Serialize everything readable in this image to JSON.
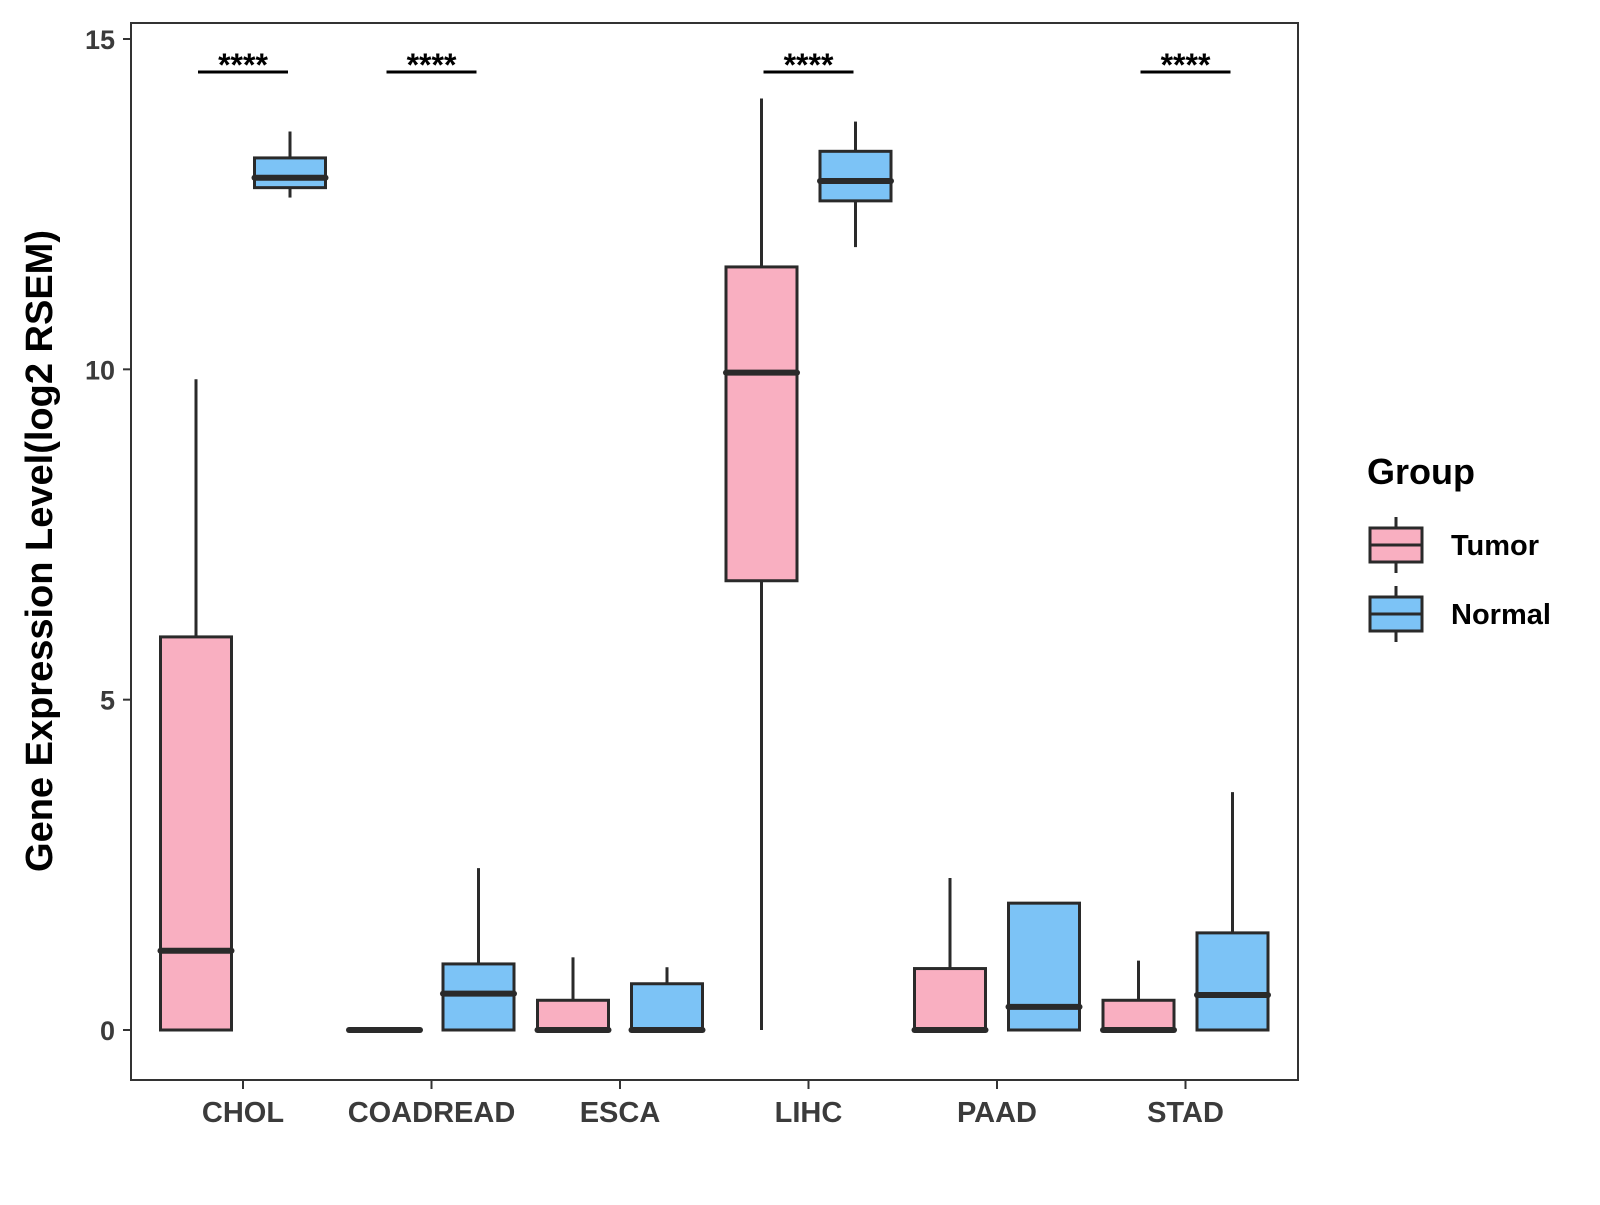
{
  "chart_data": {
    "type": "boxplot",
    "title": "",
    "xlabel": "",
    "ylabel": "Gene Expression Level(log2 RSEM)",
    "ylim": [
      -0.7,
      15.3
    ],
    "yticks": [
      0,
      5,
      10,
      15
    ],
    "ytick_labels": [
      "0",
      "5",
      "10",
      "15"
    ],
    "grid": false,
    "legend": {
      "title": "Group",
      "position": "right",
      "entries": [
        {
          "name": "Tumor",
          "color": "#f9afc1"
        },
        {
          "name": "Normal",
          "color": "#7cc3f6"
        }
      ]
    },
    "categories": [
      "CHOL",
      "COADREAD",
      "ESCA",
      "LIHC",
      "PAAD",
      "STAD"
    ],
    "series": [
      {
        "name": "Tumor",
        "color": "#f9afc1",
        "boxes": [
          {
            "category": "CHOL",
            "min": 0,
            "q1": 0,
            "median": 1.2,
            "q3": 5.95,
            "max": 9.85
          },
          {
            "category": "COADREAD",
            "min": 0,
            "q1": 0,
            "median": 0,
            "q3": 0,
            "max": 0
          },
          {
            "category": "ESCA",
            "min": 0,
            "q1": 0,
            "median": 0,
            "q3": 0.45,
            "max": 1.1
          },
          {
            "category": "LIHC",
            "min": 0,
            "q1": 6.8,
            "median": 9.95,
            "q3": 11.55,
            "max": 14.1
          },
          {
            "category": "PAAD",
            "min": 0,
            "q1": 0,
            "median": 0,
            "q3": 0.93,
            "max": 2.3
          },
          {
            "category": "STAD",
            "min": 0,
            "q1": 0,
            "median": 0,
            "q3": 0.45,
            "max": 1.05
          }
        ]
      },
      {
        "name": "Normal",
        "color": "#7cc3f6",
        "boxes": [
          {
            "category": "CHOL",
            "min": 12.6,
            "q1": 12.75,
            "median": 12.9,
            "q3": 13.2,
            "max": 13.6
          },
          {
            "category": "COADREAD",
            "min": 0,
            "q1": 0,
            "median": 0.55,
            "q3": 1.0,
            "max": 2.45
          },
          {
            "category": "ESCA",
            "min": 0,
            "q1": 0,
            "median": 0,
            "q3": 0.7,
            "max": 0.95
          },
          {
            "category": "LIHC",
            "min": 11.85,
            "q1": 12.55,
            "median": 12.85,
            "q3": 13.3,
            "max": 13.75
          },
          {
            "category": "PAAD",
            "min": 0,
            "q1": 0,
            "median": 0.35,
            "q3": 1.92,
            "max": 1.92
          },
          {
            "category": "STAD",
            "min": 0,
            "q1": 0,
            "median": 0.53,
            "q3": 1.47,
            "max": 3.6
          }
        ]
      }
    ],
    "annotations": [
      {
        "category": "CHOL",
        "label": "****",
        "y": 14.5
      },
      {
        "category": "COADREAD",
        "label": "****",
        "y": 14.5
      },
      {
        "category": "LIHC",
        "label": "****",
        "y": 14.5
      },
      {
        "category": "STAD",
        "label": "****",
        "y": 14.5
      }
    ]
  }
}
